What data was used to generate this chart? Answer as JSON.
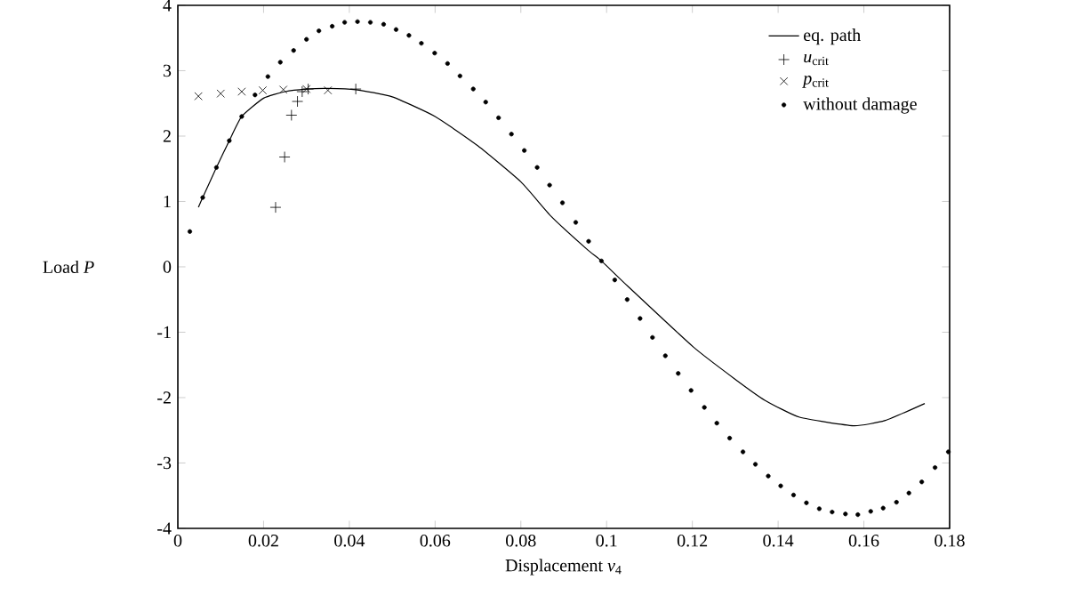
{
  "chart_data": {
    "type": "line",
    "xlabel": "Displacement *v*$_{4}$",
    "ylabel": "Load *P*",
    "xlim": [
      0,
      0.18
    ],
    "ylim": [
      -4,
      4
    ],
    "xticks": [
      0,
      0.02,
      0.04,
      0.06,
      0.08,
      0.1,
      0.12,
      0.14,
      0.16,
      0.18
    ],
    "yticks": [
      -4,
      -3,
      -2,
      -1,
      0,
      1,
      2,
      3,
      4
    ],
    "legend": "top right",
    "series": [
      {
        "name": "eq. path",
        "color": "#000000",
        "marker": "none",
        "line_style": "solid",
        "x": [
          0.0048,
          0.0058,
          0.009,
          0.012,
          0.0149,
          0.02,
          0.025,
          0.03,
          0.035,
          0.0415,
          0.05,
          0.06,
          0.07,
          0.08,
          0.0871,
          0.0954,
          0.0988,
          0.105,
          0.1203,
          0.13,
          0.1369,
          0.145,
          0.1576,
          0.165,
          0.1742
        ],
        "values": [
          0.91,
          1.06,
          1.52,
          1.93,
          2.3,
          2.58,
          2.68,
          2.72,
          2.73,
          2.71,
          2.6,
          2.3,
          1.85,
          1.3,
          0.77,
          0.27,
          0.09,
          -0.3,
          -1.23,
          -1.72,
          -2.04,
          -2.3,
          -2.43,
          -2.35,
          -2.09
        ]
      },
      {
        "name": "*u*$_{crit}$",
        "type": "scatter",
        "color": "#000000",
        "marker": "plus",
        "x": [
          0.0228,
          0.0249,
          0.0265,
          0.0279,
          0.029,
          0.0304,
          0.0415
        ],
        "values": [
          0.91,
          1.68,
          2.32,
          2.53,
          2.68,
          2.72,
          2.72
        ]
      },
      {
        "name": "*p*$_{crit}$",
        "type": "scatter",
        "color": "#000000",
        "marker": "cross",
        "x": [
          0.0048,
          0.01,
          0.0149,
          0.0198,
          0.0246,
          0.03,
          0.035
        ],
        "values": [
          2.61,
          2.65,
          2.68,
          2.7,
          2.71,
          2.72,
          2.7
        ]
      },
      {
        "name": "without damage",
        "type": "scatter",
        "color": "#000000",
        "marker": "circle",
        "x": [
          0.0028,
          0.0058,
          0.009,
          0.012,
          0.0149,
          0.018,
          0.021,
          0.0239,
          0.027,
          0.03,
          0.0329,
          0.036,
          0.0389,
          0.0419,
          0.0449,
          0.048,
          0.0509,
          0.0539,
          0.0568,
          0.0599,
          0.0629,
          0.0658,
          0.0689,
          0.0718,
          0.0748,
          0.0778,
          0.0808,
          0.0838,
          0.0867,
          0.0897,
          0.0928,
          0.0958,
          0.0988,
          0.1019,
          0.1048,
          0.1078,
          0.1107,
          0.1137,
          0.1167,
          0.1197,
          0.1228,
          0.1257,
          0.1287,
          0.1318,
          0.1347,
          0.1377,
          0.1406,
          0.1436,
          0.1466,
          0.1496,
          0.1526,
          0.1557,
          0.1586,
          0.1616,
          0.1645,
          0.1676,
          0.1705,
          0.1735,
          0.1766,
          0.1797
        ],
        "values": [
          0.54,
          1.06,
          1.52,
          1.93,
          2.3,
          2.63,
          2.91,
          3.13,
          3.31,
          3.48,
          3.61,
          3.68,
          3.74,
          3.75,
          3.74,
          3.71,
          3.63,
          3.54,
          3.42,
          3.27,
          3.11,
          2.92,
          2.72,
          2.52,
          2.28,
          2.03,
          1.78,
          1.52,
          1.25,
          0.98,
          0.68,
          0.39,
          0.09,
          -0.2,
          -0.5,
          -0.79,
          -1.08,
          -1.36,
          -1.63,
          -1.89,
          -2.15,
          -2.39,
          -2.62,
          -2.83,
          -3.02,
          -3.2,
          -3.35,
          -3.49,
          -3.61,
          -3.7,
          -3.75,
          -3.78,
          -3.79,
          -3.74,
          -3.69,
          -3.6,
          -3.46,
          -3.29,
          -3.07,
          -2.83
        ]
      }
    ]
  }
}
